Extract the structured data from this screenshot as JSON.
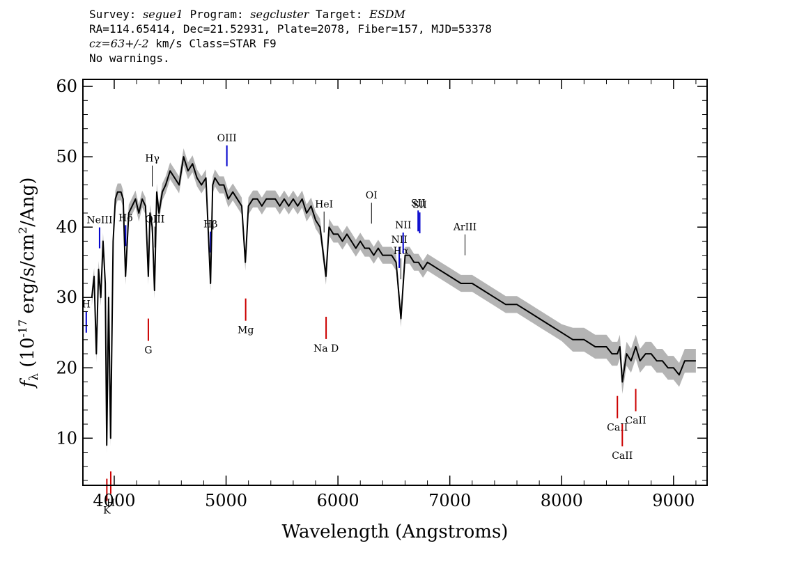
{
  "header": {
    "survey_label": "Survey:",
    "survey": "segue1",
    "program_label": "Program:",
    "program": "segcluster",
    "target_label": "Target:",
    "target": "ESDM",
    "line2": "RA=114.65414, Dec=21.52931, Plate=2078, Fiber=157, MJD=53378",
    "cz": "cz=63+/-2",
    "cz_unit": "km/s",
    "class_text": "Class=STAR F9",
    "warnings": "No warnings."
  },
  "chart_data": {
    "type": "line",
    "xlabel": "Wavelength (Angstroms)",
    "ylabel": "f_λ (10^-17 erg/s/cm^2/Ang)",
    "xlim": [
      3720,
      9300
    ],
    "ylim": [
      3.3,
      61
    ],
    "xticks": [
      4000,
      5000,
      6000,
      7000,
      8000,
      9000
    ],
    "yticks": [
      10,
      20,
      30,
      40,
      50,
      60
    ],
    "colors": {
      "flux": "#000000",
      "error_band": "#b4b4b4",
      "emission": "#0000cc",
      "absorption": "#cc0000",
      "other": "#000000"
    },
    "series": [
      {
        "x": [
          3800,
          3820,
          3840,
          3860,
          3880,
          3900,
          3920,
          3933,
          3950,
          3968,
          3990,
          4010,
          4030,
          4060,
          4080,
          4101,
          4130,
          4160,
          4190,
          4220,
          4250,
          4280,
          4305,
          4320,
          4340,
          4360,
          4380,
          4400,
          4430,
          4460,
          4500,
          4540,
          4580,
          4620,
          4660,
          4700,
          4740,
          4780,
          4820,
          4861,
          4880,
          4900,
          4940,
          4980,
          5020,
          5060,
          5100,
          5140,
          5172,
          5200,
          5240,
          5280,
          5320,
          5360,
          5400,
          5440,
          5480,
          5520,
          5560,
          5600,
          5640,
          5680,
          5720,
          5760,
          5800,
          5840,
          5893,
          5920,
          5960,
          6000,
          6040,
          6080,
          6120,
          6160,
          6200,
          6240,
          6280,
          6320,
          6360,
          6400,
          6440,
          6480,
          6520,
          6563,
          6600,
          6640,
          6680,
          6720,
          6760,
          6800,
          6900,
          7000,
          7100,
          7200,
          7300,
          7400,
          7500,
          7600,
          7700,
          7800,
          7900,
          8000,
          8100,
          8200,
          8300,
          8400,
          8450,
          8498,
          8520,
          8542,
          8580,
          8620,
          8662,
          8700,
          8750,
          8800,
          8850,
          8900,
          8950,
          9000,
          9050,
          9100,
          9150,
          9200
        ],
        "y": [
          30,
          33,
          22,
          34,
          30,
          38,
          32,
          9,
          30,
          10,
          38,
          44,
          45,
          45,
          44,
          33,
          42,
          43,
          44,
          42,
          44,
          43,
          33,
          42,
          40,
          31,
          45,
          42,
          45,
          46,
          48,
          47,
          46,
          50,
          48,
          49,
          47,
          46,
          47,
          32,
          46,
          47,
          46,
          46,
          44,
          45,
          44,
          43,
          35,
          43,
          44,
          44,
          43,
          44,
          44,
          44,
          43,
          44,
          43,
          44,
          43,
          44,
          42,
          43,
          41,
          40,
          33,
          40,
          39,
          39,
          38,
          39,
          38,
          37,
          38,
          37,
          37,
          36,
          37,
          36,
          36,
          36,
          35,
          27,
          36,
          36,
          35,
          35,
          34,
          35,
          34,
          33,
          32,
          32,
          31,
          30,
          29,
          29,
          28,
          27,
          26,
          25,
          24,
          24,
          23,
          23,
          22,
          22,
          23,
          18,
          22,
          21,
          23,
          21,
          22,
          22,
          21,
          21,
          20,
          20,
          19,
          21,
          21,
          21
        ]
      }
    ],
    "spectral_lines": [
      {
        "label": "H",
        "wave": 3750,
        "kind": "emission"
      },
      {
        "label": "NeIII",
        "wave": 3869,
        "kind": "emission"
      },
      {
        "label": "Hδ",
        "wave": 4102,
        "kind": "emission"
      },
      {
        "label": "Hγ",
        "wave": 4340,
        "kind": "other"
      },
      {
        "label": "OIII",
        "wave": 4363,
        "kind": "other"
      },
      {
        "label": "Hβ",
        "wave": 4861,
        "kind": "emission"
      },
      {
        "label": "OIII",
        "wave": 5007,
        "kind": "emission"
      },
      {
        "label": "HeI",
        "wave": 5876,
        "kind": "other"
      },
      {
        "label": "OI",
        "wave": 6300,
        "kind": "other"
      },
      {
        "label": "NII",
        "wave": 6548,
        "kind": "emission"
      },
      {
        "label": "Hα",
        "wave": 6563,
        "kind": "other"
      },
      {
        "label": "NII",
        "wave": 6583,
        "kind": "emission"
      },
      {
        "label": "SII",
        "wave": 6717,
        "kind": "emission"
      },
      {
        "label": "SII",
        "wave": 6731,
        "kind": "emission"
      },
      {
        "label": "ArIII",
        "wave": 7136,
        "kind": "other"
      },
      {
        "label": "K",
        "wave": 3934,
        "kind": "absorption"
      },
      {
        "label": "H",
        "wave": 3969,
        "kind": "absorption"
      },
      {
        "label": "G",
        "wave": 4305,
        "kind": "absorption"
      },
      {
        "label": "Mg",
        "wave": 5175,
        "kind": "absorption"
      },
      {
        "label": "Na D",
        "wave": 5894,
        "kind": "absorption"
      },
      {
        "label": "CaII",
        "wave": 8498,
        "kind": "absorption"
      },
      {
        "label": "CaII",
        "wave": 8542,
        "kind": "absorption"
      },
      {
        "label": "CaII",
        "wave": 8662,
        "kind": "absorption"
      }
    ]
  }
}
